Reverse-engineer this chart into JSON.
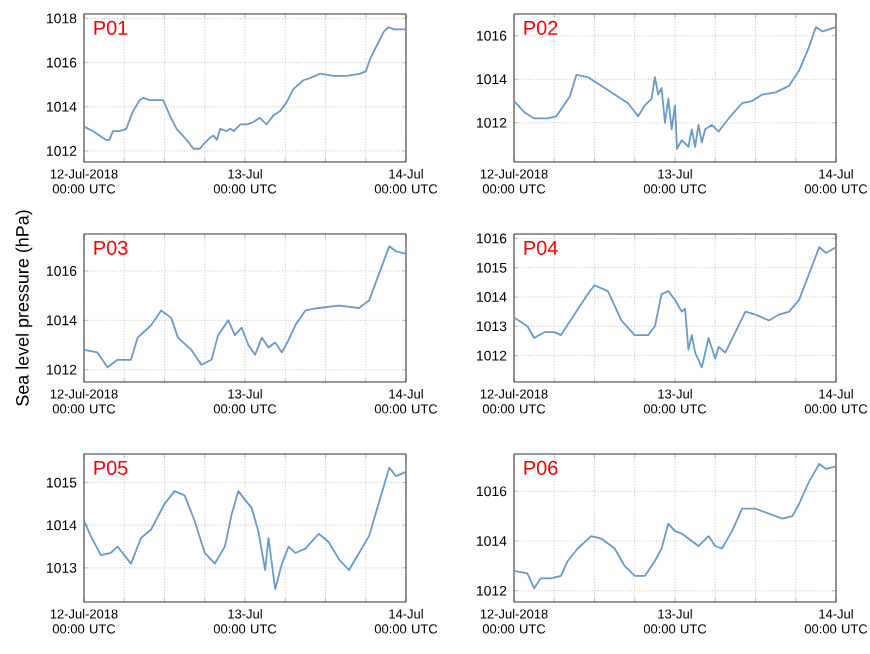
{
  "chart_data": [
    {
      "type": "line",
      "title": "P01",
      "color": "#6a9ac8",
      "grid": true,
      "xlim": [
        "2018-07-12T00:00",
        "2018-07-14T00:00"
      ],
      "ylim": [
        1011.5,
        1018.2
      ],
      "yticks": [
        1012,
        1014,
        1016,
        1018
      ],
      "xticks": [
        {
          "value": "2018-07-12T00:00",
          "label": "12-Jul-2018 00:00 UTC"
        },
        {
          "value": "2018-07-12T06:00",
          "label": null
        },
        {
          "value": "2018-07-12T12:00",
          "label": null
        },
        {
          "value": "2018-07-12T18:00",
          "label": null
        },
        {
          "value": "2018-07-13T00:00",
          "label": "13-Jul 00:00 UTC"
        },
        {
          "value": "2018-07-13T06:00",
          "label": null
        },
        {
          "value": "2018-07-13T12:00",
          "label": null
        },
        {
          "value": "2018-07-13T18:00",
          "label": null
        },
        {
          "value": "2018-07-14T00:00",
          "label": "14-Jul 00:00 UTC"
        }
      ],
      "x": [
        "2018-07-12T00:00",
        "2018-07-12T01:18",
        "2018-07-12T02:18",
        "2018-07-12T03:18",
        "2018-07-12T03:48",
        "2018-07-12T04:18",
        "2018-07-12T05:18",
        "2018-07-12T06:18",
        "2018-07-12T07:18",
        "2018-07-12T08:18",
        "2018-07-12T08:48",
        "2018-07-12T09:48",
        "2018-07-12T11:48",
        "2018-07-12T12:48",
        "2018-07-12T13:48",
        "2018-07-12T15:18",
        "2018-07-12T16:18",
        "2018-07-12T17:18",
        "2018-07-12T17:48",
        "2018-07-12T18:48",
        "2018-07-12T19:18",
        "2018-07-12T19:48",
        "2018-07-12T20:18",
        "2018-07-12T21:18",
        "2018-07-12T21:48",
        "2018-07-12T22:18",
        "2018-07-12T23:18",
        "2018-07-13T00:18",
        "2018-07-13T01:12",
        "2018-07-13T02:12",
        "2018-07-13T03:12",
        "2018-07-13T04:12",
        "2018-07-13T05:12",
        "2018-07-13T06:12",
        "2018-07-13T07:12",
        "2018-07-13T08:42",
        "2018-07-13T09:42",
        "2018-07-13T11:12",
        "2018-07-13T13:12",
        "2018-07-13T15:12",
        "2018-07-13T17:12",
        "2018-07-13T18:00",
        "2018-07-13T18:42",
        "2018-07-13T19:42",
        "2018-07-13T20:42",
        "2018-07-13T21:24",
        "2018-07-13T22:12",
        "2018-07-13T23:12",
        "2018-07-14T00:00"
      ],
      "values": [
        1013.1,
        1012.9,
        1012.7,
        1012.5,
        1012.5,
        1012.9,
        1012.9,
        1013.0,
        1013.8,
        1014.3,
        1014.4,
        1014.3,
        1014.3,
        1013.6,
        1013.0,
        1012.5,
        1012.1,
        1012.1,
        1012.3,
        1012.6,
        1012.7,
        1012.5,
        1013.0,
        1012.9,
        1013.0,
        1012.9,
        1013.2,
        1013.2,
        1013.3,
        1013.5,
        1013.2,
        1013.6,
        1013.8,
        1014.2,
        1014.8,
        1015.2,
        1015.3,
        1015.5,
        1015.4,
        1015.4,
        1015.5,
        1015.6,
        1016.2,
        1016.8,
        1017.4,
        1017.6,
        1017.5,
        1017.5,
        1017.5
      ]
    },
    {
      "type": "line",
      "title": "P02",
      "color": "#6a9ac8",
      "grid": true,
      "xlim": [
        "2018-07-12T00:00",
        "2018-07-14T00:00"
      ],
      "ylim": [
        1010.2,
        1017
      ],
      "yticks": [
        1012,
        1014,
        1016
      ],
      "xticks": [
        {
          "value": "2018-07-12T00:00",
          "label": "12-Jul-2018 00:00 UTC"
        },
        {
          "value": "2018-07-12T06:00",
          "label": null
        },
        {
          "value": "2018-07-12T12:00",
          "label": null
        },
        {
          "value": "2018-07-12T18:00",
          "label": null
        },
        {
          "value": "2018-07-13T00:00",
          "label": "13-Jul 00:00 UTC"
        },
        {
          "value": "2018-07-13T06:00",
          "label": null
        },
        {
          "value": "2018-07-13T12:00",
          "label": null
        },
        {
          "value": "2018-07-13T18:00",
          "label": null
        },
        {
          "value": "2018-07-14T00:00",
          "label": "14-Jul 00:00 UTC"
        }
      ],
      "x": [
        "2018-07-12T00:00",
        "2018-07-12T01:30",
        "2018-07-12T03:00",
        "2018-07-12T05:00",
        "2018-07-12T06:18",
        "2018-07-12T08:18",
        "2018-07-12T09:18",
        "2018-07-12T11:00",
        "2018-07-12T13:00",
        "2018-07-12T15:00",
        "2018-07-12T17:00",
        "2018-07-12T18:30",
        "2018-07-12T19:30",
        "2018-07-12T20:30",
        "2018-07-12T21:00",
        "2018-07-12T21:30",
        "2018-07-12T22:00",
        "2018-07-12T22:30",
        "2018-07-12T23:00",
        "2018-07-12T23:30",
        "2018-07-13T00:00",
        "2018-07-13T00:18",
        "2018-07-13T01:00",
        "2018-07-13T02:00",
        "2018-07-13T02:30",
        "2018-07-13T03:00",
        "2018-07-13T03:30",
        "2018-07-13T04:00",
        "2018-07-13T04:30",
        "2018-07-13T05:30",
        "2018-07-13T06:30",
        "2018-07-13T08:00",
        "2018-07-13T10:00",
        "2018-07-13T11:30",
        "2018-07-13T13:00",
        "2018-07-13T15:00",
        "2018-07-13T17:00",
        "2018-07-13T18:30",
        "2018-07-13T20:00",
        "2018-07-13T21:00",
        "2018-07-13T22:00",
        "2018-07-14T00:00"
      ],
      "values": [
        1013.0,
        1012.5,
        1012.2,
        1012.2,
        1012.3,
        1013.2,
        1014.2,
        1014.1,
        1013.7,
        1013.3,
        1012.9,
        1012.3,
        1012.8,
        1013.1,
        1014.1,
        1013.3,
        1013.6,
        1012.0,
        1013.1,
        1011.7,
        1012.8,
        1010.8,
        1011.2,
        1010.9,
        1011.7,
        1010.9,
        1011.9,
        1011.1,
        1011.7,
        1011.9,
        1011.6,
        1012.2,
        1012.9,
        1013.0,
        1013.3,
        1013.4,
        1013.7,
        1014.4,
        1015.5,
        1016.4,
        1016.2,
        1016.4
      ]
    },
    {
      "type": "line",
      "title": "P03",
      "ylabel": "Sea level pressure (hPa)",
      "color": "#6a9ac8",
      "grid": true,
      "xlim": [
        "2018-07-12T00:00",
        "2018-07-14T00:00"
      ],
      "ylim": [
        1011.5,
        1017.5
      ],
      "yticks": [
        1012,
        1014,
        1016
      ],
      "xticks": [
        {
          "value": "2018-07-12T00:00",
          "label": "12-Jul-2018 00:00 UTC"
        },
        {
          "value": "2018-07-12T06:00",
          "label": null
        },
        {
          "value": "2018-07-12T12:00",
          "label": null
        },
        {
          "value": "2018-07-12T18:00",
          "label": null
        },
        {
          "value": "2018-07-13T00:00",
          "label": "13-Jul 00:00 UTC"
        },
        {
          "value": "2018-07-13T06:00",
          "label": null
        },
        {
          "value": "2018-07-13T12:00",
          "label": null
        },
        {
          "value": "2018-07-13T18:00",
          "label": null
        },
        {
          "value": "2018-07-14T00:00",
          "label": "14-Jul 00:00 UTC"
        }
      ],
      "x": [
        "2018-07-12T00:00",
        "2018-07-12T02:00",
        "2018-07-12T03:30",
        "2018-07-12T05:00",
        "2018-07-12T07:00",
        "2018-07-12T08:00",
        "2018-07-12T10:00",
        "2018-07-12T11:30",
        "2018-07-12T13:00",
        "2018-07-12T14:00",
        "2018-07-12T16:00",
        "2018-07-12T17:30",
        "2018-07-12T19:00",
        "2018-07-12T20:00",
        "2018-07-12T21:30",
        "2018-07-12T22:30",
        "2018-07-12T23:30",
        "2018-07-13T00:30",
        "2018-07-13T01:30",
        "2018-07-13T02:30",
        "2018-07-13T03:30",
        "2018-07-13T04:30",
        "2018-07-13T05:30",
        "2018-07-13T06:18",
        "2018-07-13T07:30",
        "2018-07-13T09:00",
        "2018-07-13T11:00",
        "2018-07-13T14:00",
        "2018-07-13T17:00",
        "2018-07-13T18:30",
        "2018-07-13T20:00",
        "2018-07-13T21:30",
        "2018-07-13T22:30",
        "2018-07-14T00:00"
      ],
      "values": [
        1012.8,
        1012.7,
        1012.1,
        1012.4,
        1012.4,
        1013.3,
        1013.8,
        1014.4,
        1014.1,
        1013.3,
        1012.8,
        1012.2,
        1012.4,
        1013.4,
        1014.0,
        1013.4,
        1013.7,
        1013.0,
        1012.6,
        1013.3,
        1012.9,
        1013.1,
        1012.7,
        1013.1,
        1013.8,
        1014.4,
        1014.5,
        1014.6,
        1014.5,
        1014.8,
        1015.9,
        1017.0,
        1016.8,
        1016.7
      ]
    },
    {
      "type": "line",
      "title": "P04",
      "color": "#6a9ac8",
      "grid": true,
      "xlim": [
        "2018-07-12T00:00",
        "2018-07-14T00:00"
      ],
      "ylim": [
        1011.1,
        1016.15
      ],
      "yticks": [
        1012,
        1013,
        1014,
        1015,
        1016
      ],
      "xticks": [
        {
          "value": "2018-07-12T00:00",
          "label": "12-Jul-2018 00:00 UTC"
        },
        {
          "value": "2018-07-12T06:00",
          "label": null
        },
        {
          "value": "2018-07-12T12:00",
          "label": null
        },
        {
          "value": "2018-07-12T18:00",
          "label": null
        },
        {
          "value": "2018-07-13T00:00",
          "label": "13-Jul 00:00 UTC"
        },
        {
          "value": "2018-07-13T06:00",
          "label": null
        },
        {
          "value": "2018-07-13T12:00",
          "label": null
        },
        {
          "value": "2018-07-13T18:00",
          "label": null
        },
        {
          "value": "2018-07-14T00:00",
          "label": "14-Jul 00:00 UTC"
        }
      ],
      "x": [
        "2018-07-12T00:00",
        "2018-07-12T02:00",
        "2018-07-12T03:00",
        "2018-07-12T04:30",
        "2018-07-12T06:00",
        "2018-07-12T07:00",
        "2018-07-12T09:00",
        "2018-07-12T11:00",
        "2018-07-12T12:00",
        "2018-07-12T14:00",
        "2018-07-12T16:00",
        "2018-07-12T18:00",
        "2018-07-12T20:00",
        "2018-07-12T21:00",
        "2018-07-12T22:00",
        "2018-07-12T23:00",
        "2018-07-13T00:00",
        "2018-07-13T01:00",
        "2018-07-13T01:30",
        "2018-07-13T02:00",
        "2018-07-13T02:30",
        "2018-07-13T03:00",
        "2018-07-13T04:00",
        "2018-07-13T05:00",
        "2018-07-13T06:00",
        "2018-07-13T06:30",
        "2018-07-13T07:30",
        "2018-07-13T09:00",
        "2018-07-13T10:30",
        "2018-07-13T12:00",
        "2018-07-13T14:00",
        "2018-07-13T15:30",
        "2018-07-13T17:00",
        "2018-07-13T18:30",
        "2018-07-13T20:00",
        "2018-07-13T21:30",
        "2018-07-13T22:30",
        "2018-07-14T00:00"
      ],
      "values": [
        1013.3,
        1013.0,
        1012.6,
        1012.8,
        1012.8,
        1012.7,
        1013.4,
        1014.1,
        1014.4,
        1014.2,
        1013.2,
        1012.7,
        1012.7,
        1013.0,
        1014.1,
        1014.2,
        1013.9,
        1013.5,
        1013.6,
        1012.2,
        1012.7,
        1012.1,
        1011.6,
        1012.6,
        1011.9,
        1012.3,
        1012.1,
        1012.8,
        1013.5,
        1013.4,
        1013.2,
        1013.4,
        1013.5,
        1013.9,
        1014.8,
        1015.7,
        1015.5,
        1015.7
      ]
    },
    {
      "type": "line",
      "title": "P05",
      "color": "#6a9ac8",
      "grid": true,
      "xlim": [
        "2018-07-12T00:00",
        "2018-07-14T00:00"
      ],
      "ylim": [
        1012.2,
        1015.67
      ],
      "yticks": [
        1013,
        1014,
        1015
      ],
      "xticks": [
        {
          "value": "2018-07-12T00:00",
          "label": "12-Jul-2018 00:00 UTC"
        },
        {
          "value": "2018-07-12T06:00",
          "label": null
        },
        {
          "value": "2018-07-12T12:00",
          "label": null
        },
        {
          "value": "2018-07-12T18:00",
          "label": null
        },
        {
          "value": "2018-07-13T00:00",
          "label": "13-Jul 00:00 UTC"
        },
        {
          "value": "2018-07-13T06:00",
          "label": null
        },
        {
          "value": "2018-07-13T12:00",
          "label": null
        },
        {
          "value": "2018-07-13T18:00",
          "label": null
        },
        {
          "value": "2018-07-14T00:00",
          "label": "14-Jul 00:00 UTC"
        }
      ],
      "x": [
        "2018-07-12T00:00",
        "2018-07-12T01:00",
        "2018-07-12T02:30",
        "2018-07-12T04:00",
        "2018-07-12T05:00",
        "2018-07-12T06:00",
        "2018-07-12T07:00",
        "2018-07-12T08:30",
        "2018-07-12T10:00",
        "2018-07-12T12:00",
        "2018-07-12T13:30",
        "2018-07-12T15:00",
        "2018-07-12T16:30",
        "2018-07-12T18:00",
        "2018-07-12T19:30",
        "2018-07-12T21:00",
        "2018-07-12T22:00",
        "2018-07-12T23:00",
        "2018-07-13T00:00",
        "2018-07-13T01:00",
        "2018-07-13T02:00",
        "2018-07-13T03:00",
        "2018-07-13T03:30",
        "2018-07-13T04:30",
        "2018-07-13T05:30",
        "2018-07-13T06:30",
        "2018-07-13T07:30",
        "2018-07-13T09:00",
        "2018-07-13T11:00",
        "2018-07-13T12:30",
        "2018-07-13T14:00",
        "2018-07-13T15:30",
        "2018-07-13T17:00",
        "2018-07-13T18:30",
        "2018-07-13T20:00",
        "2018-07-13T21:30",
        "2018-07-13T22:30",
        "2018-07-14T00:00"
      ],
      "values": [
        1014.1,
        1013.75,
        1013.3,
        1013.35,
        1013.5,
        1013.3,
        1013.1,
        1013.7,
        1013.9,
        1014.5,
        1014.8,
        1014.7,
        1014.1,
        1013.35,
        1013.1,
        1013.5,
        1014.25,
        1014.8,
        1014.6,
        1014.4,
        1013.85,
        1012.95,
        1013.7,
        1012.5,
        1013.1,
        1013.5,
        1013.35,
        1013.45,
        1013.8,
        1013.6,
        1013.2,
        1012.95,
        1013.35,
        1013.75,
        1014.55,
        1015.35,
        1015.15,
        1015.25
      ]
    },
    {
      "type": "line",
      "title": "P06",
      "color": "#6a9ac8",
      "grid": true,
      "xlim": [
        "2018-07-12T00:00",
        "2018-07-14T00:00"
      ],
      "ylim": [
        1011.55,
        1017.5
      ],
      "yticks": [
        1012,
        1014,
        1016
      ],
      "xticks": [
        {
          "value": "2018-07-12T00:00",
          "label": "12-Jul-2018 00:00 UTC"
        },
        {
          "value": "2018-07-12T06:00",
          "label": null
        },
        {
          "value": "2018-07-12T12:00",
          "label": null
        },
        {
          "value": "2018-07-12T18:00",
          "label": null
        },
        {
          "value": "2018-07-13T00:00",
          "label": "13-Jul 00:00 UTC"
        },
        {
          "value": "2018-07-13T06:00",
          "label": null
        },
        {
          "value": "2018-07-13T12:00",
          "label": null
        },
        {
          "value": "2018-07-13T18:00",
          "label": null
        },
        {
          "value": "2018-07-14T00:00",
          "label": "14-Jul 00:00 UTC"
        }
      ],
      "x": [
        "2018-07-12T00:00",
        "2018-07-12T02:00",
        "2018-07-12T03:00",
        "2018-07-12T04:00",
        "2018-07-12T05:30",
        "2018-07-12T07:00",
        "2018-07-12T08:00",
        "2018-07-12T09:30",
        "2018-07-12T11:30",
        "2018-07-12T13:00",
        "2018-07-12T15:00",
        "2018-07-12T16:30",
        "2018-07-12T18:00",
        "2018-07-12T19:30",
        "2018-07-12T21:00",
        "2018-07-12T22:00",
        "2018-07-12T23:00",
        "2018-07-13T00:00",
        "2018-07-13T01:00",
        "2018-07-13T02:30",
        "2018-07-13T03:30",
        "2018-07-13T05:00",
        "2018-07-13T06:00",
        "2018-07-13T07:00",
        "2018-07-13T08:30",
        "2018-07-13T10:00",
        "2018-07-13T12:00",
        "2018-07-13T14:00",
        "2018-07-13T16:00",
        "2018-07-13T17:30",
        "2018-07-13T18:30",
        "2018-07-13T20:00",
        "2018-07-13T21:30",
        "2018-07-13T22:30",
        "2018-07-14T00:00"
      ],
      "values": [
        1012.8,
        1012.7,
        1012.1,
        1012.5,
        1012.5,
        1012.6,
        1013.2,
        1013.7,
        1014.2,
        1014.1,
        1013.7,
        1013.0,
        1012.6,
        1012.6,
        1013.2,
        1013.7,
        1014.7,
        1014.4,
        1014.3,
        1014.0,
        1013.8,
        1014.2,
        1013.8,
        1013.7,
        1014.4,
        1015.3,
        1015.3,
        1015.1,
        1014.9,
        1015.0,
        1015.5,
        1016.4,
        1017.1,
        1016.9,
        1017.0
      ]
    }
  ]
}
